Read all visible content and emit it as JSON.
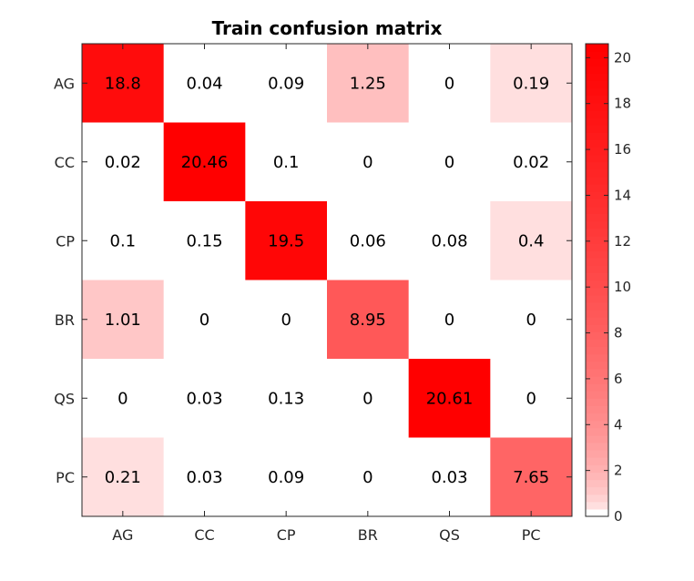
{
  "chart_data": {
    "type": "heatmap",
    "title": "Train confusion matrix",
    "row_labels": [
      "AG",
      "CC",
      "CP",
      "BR",
      "QS",
      "PC"
    ],
    "col_labels": [
      "AG",
      "CC",
      "CP",
      "BR",
      "QS",
      "PC"
    ],
    "values": [
      [
        18.8,
        0.04,
        0.09,
        1.25,
        0,
        0.19
      ],
      [
        0.02,
        20.46,
        0.1,
        0,
        0,
        0.02
      ],
      [
        0.1,
        0.15,
        19.5,
        0.06,
        0.08,
        0.4
      ],
      [
        1.01,
        0,
        0,
        8.95,
        0,
        0
      ],
      [
        0,
        0.03,
        0.13,
        0,
        20.61,
        0
      ],
      [
        0.21,
        0.03,
        0.09,
        0,
        0.03,
        7.65
      ]
    ],
    "value_labels": [
      [
        "18.8",
        "0.04",
        "0.09",
        "1.25",
        "0",
        "0.19"
      ],
      [
        "0.02",
        "20.46",
        "0.1",
        "0",
        "0",
        "0.02"
      ],
      [
        "0.1",
        "0.15",
        "19.5",
        "0.06",
        "0.08",
        "0.4"
      ],
      [
        "1.01",
        "0",
        "0",
        "8.95",
        "0",
        "0"
      ],
      [
        "0",
        "0.03",
        "0.13",
        "0",
        "20.61",
        "0"
      ],
      [
        "0.21",
        "0.03",
        "0.09",
        "0",
        "0.03",
        "7.65"
      ]
    ],
    "colorbar": {
      "ticks": [
        0,
        2,
        4,
        6,
        8,
        10,
        12,
        14,
        16,
        18,
        20
      ],
      "tick_labels": [
        "0",
        "2",
        "4",
        "6",
        "8",
        "10",
        "12",
        "14",
        "16",
        "18",
        "20"
      ],
      "range": [
        0,
        20.61
      ],
      "color_min": "#ffffff",
      "color_max": "#ff0000",
      "levels": 64
    },
    "grid": false
  }
}
